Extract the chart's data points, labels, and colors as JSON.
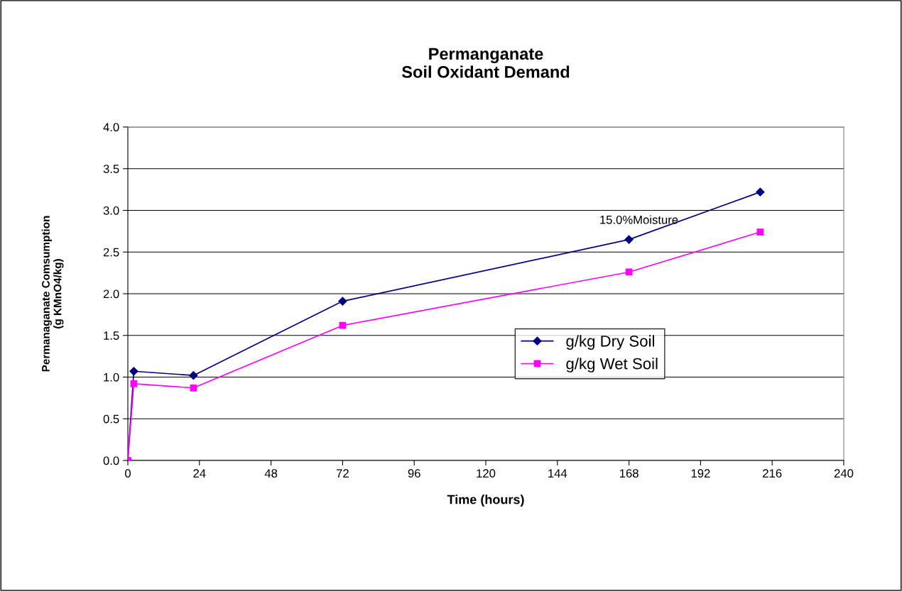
{
  "chart_data": {
    "type": "line",
    "title": "Permanganate\nSoil Oxidant Demand",
    "xlabel": "Time (hours)",
    "ylabel": "Permanaganate Comsumption\n(g KMnO4/kg)",
    "annotations": [
      {
        "text": "15.0%Moisture",
        "x": 168,
        "y": 2.65
      }
    ],
    "series": [
      {
        "name": "g/kg Dry Soil",
        "color": "#000080",
        "marker": "diamond",
        "x": [
          0,
          2,
          22,
          72,
          168,
          212
        ],
        "values": [
          0.0,
          1.07,
          1.02,
          1.91,
          2.65,
          3.22
        ]
      },
      {
        "name": "g/kg Wet Soil",
        "color": "#ff00ff",
        "marker": "square",
        "x": [
          0,
          2,
          22,
          72,
          168,
          212
        ],
        "values": [
          0.0,
          0.92,
          0.87,
          1.62,
          2.26,
          2.74
        ]
      }
    ],
    "xlim": [
      0,
      240
    ],
    "xticks": [
      0,
      24,
      48,
      72,
      96,
      120,
      144,
      168,
      192,
      216,
      240
    ],
    "ylim": [
      0.0,
      4.0
    ],
    "yticks": [
      {
        "value": 0,
        "label": "0.0"
      },
      {
        "value": 0.5,
        "label": "0.5"
      },
      {
        "value": 1,
        "label": "1.0"
      },
      {
        "value": 1.5,
        "label": "1.5"
      },
      {
        "value": 2,
        "label": "2.0"
      },
      {
        "value": 2.5,
        "label": "2.5"
      },
      {
        "value": 3,
        "label": "3.0"
      },
      {
        "value": 3.5,
        "label": "3.5"
      },
      {
        "value": 4,
        "label": "4.0"
      }
    ],
    "grid": "y",
    "legend": "right",
    "line_style": "solid"
  }
}
